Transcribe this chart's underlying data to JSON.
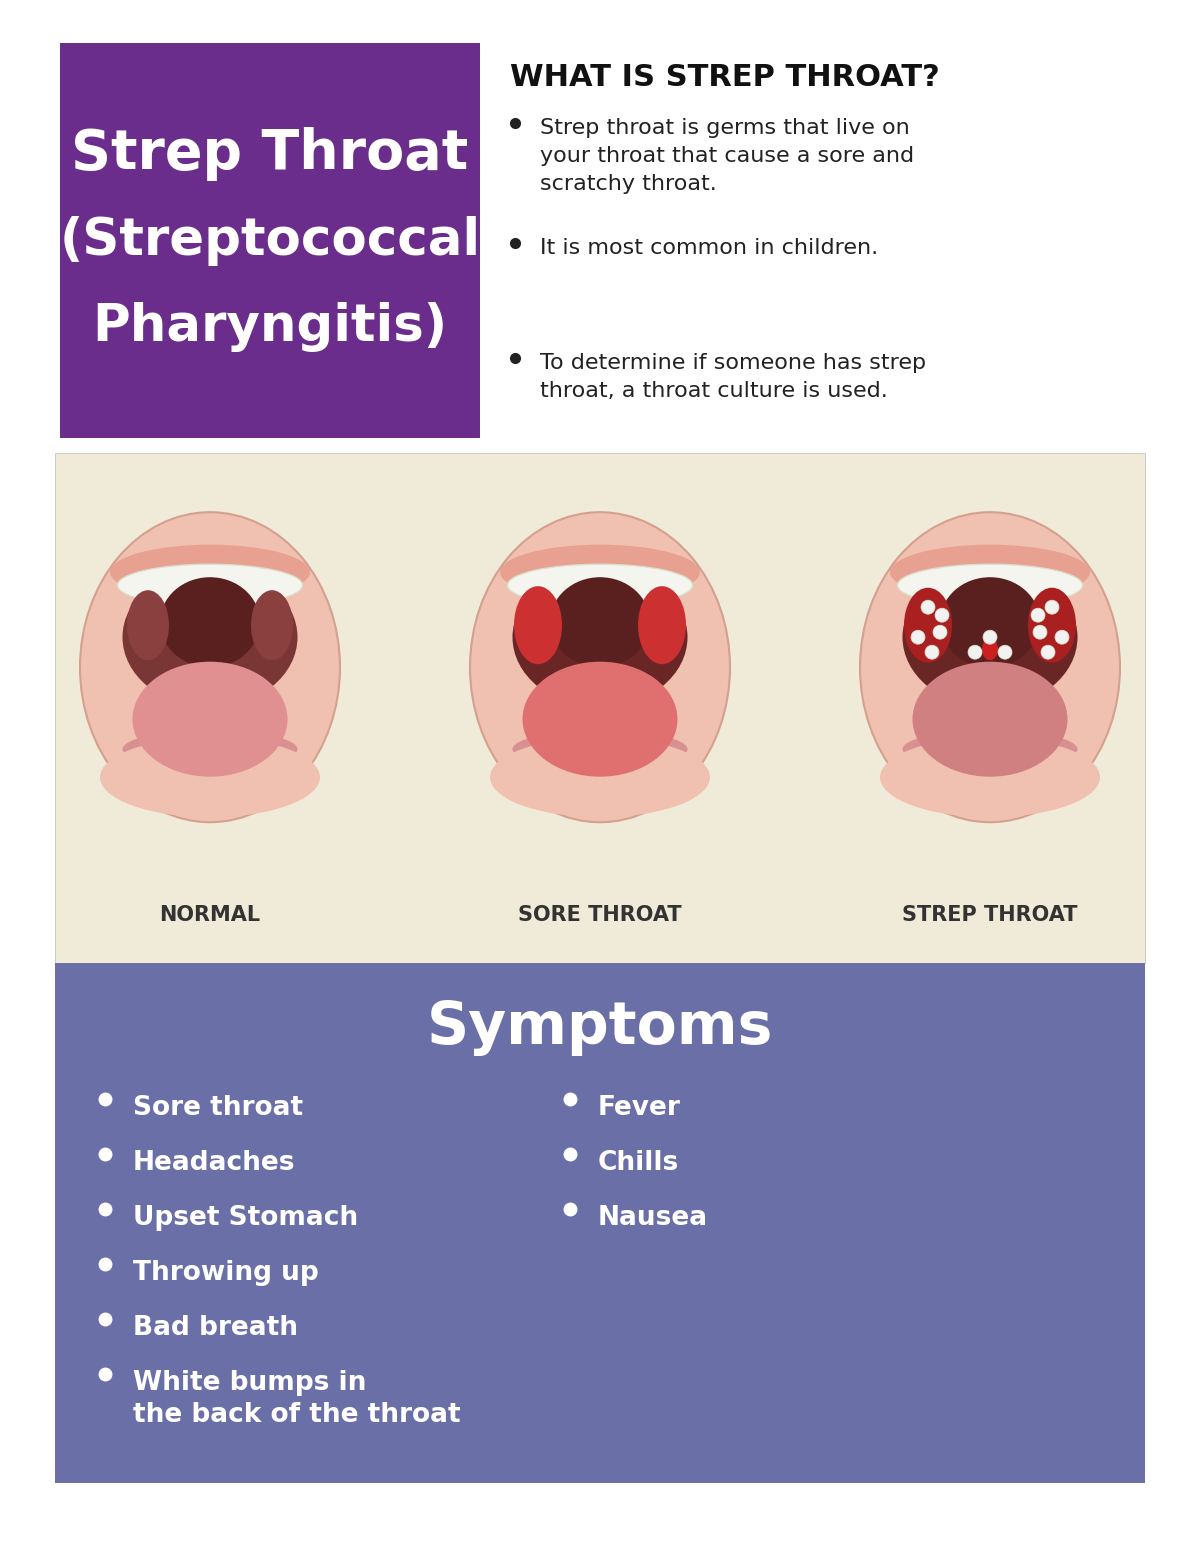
{
  "title_box_color": "#6B2D8B",
  "title_line1": "Strep Throat",
  "title_line2": "(Streptococcal",
  "title_line3": "Pharyngitis)",
  "title_text_color": "#FFFFFF",
  "section_heading": "WHAT IS STREP THROAT?",
  "section_heading_color": "#111111",
  "bullet_points": [
    "Strep throat is germs that live on\nyour throat that cause a sore and\nscratchy throat.",
    "It is most common in children.",
    "To determine if someone has strep\nthroat, a throat culture is used."
  ],
  "bullet_color": "#222222",
  "image_bg_color": "#F0EBD8",
  "throat_labels": [
    "NORMAL",
    "SORE THROAT",
    "STREP THROAT"
  ],
  "throat_label_color": "#333333",
  "symptoms_bg_color": "#6B6FA8",
  "symptoms_title": "Symptoms",
  "symptoms_title_color": "#FFFFFF",
  "symptoms_left": [
    "Sore throat",
    "Headaches",
    "Upset Stomach",
    "Throwing up",
    "Bad breath",
    "White bumps in\nthe back of the throat"
  ],
  "symptoms_right": [
    "Fever",
    "Chills",
    "Nausea"
  ],
  "symptoms_text_color": "#FFFFFF",
  "bg_color": "#FFFFFF"
}
